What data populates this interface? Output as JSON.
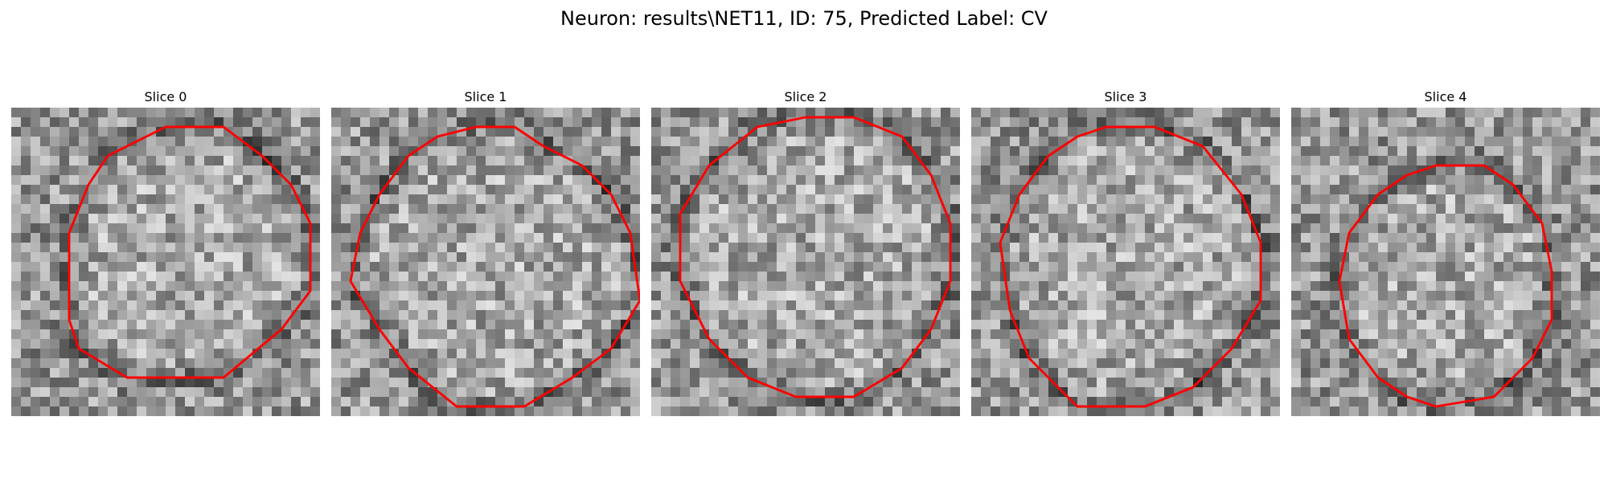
{
  "figure": {
    "title": "Neuron: results\\NET11, ID: 75, Predicted Label: CV"
  },
  "panels": [
    {
      "title": "Slice 0",
      "seed": 11,
      "contour": [
        [
          16,
          2
        ],
        [
          22,
          2
        ],
        [
          26,
          5
        ],
        [
          29,
          8
        ],
        [
          31,
          12
        ],
        [
          31,
          19
        ],
        [
          28,
          23
        ],
        [
          22,
          28
        ],
        [
          12,
          28
        ],
        [
          7,
          25
        ],
        [
          6,
          22
        ],
        [
          6,
          13
        ],
        [
          8,
          8
        ],
        [
          10,
          5
        ],
        [
          14,
          3
        ]
      ]
    },
    {
      "title": "Slice 1",
      "seed": 23,
      "contour": [
        [
          15,
          2
        ],
        [
          19,
          2
        ],
        [
          22,
          4
        ],
        [
          26,
          6
        ],
        [
          29,
          9
        ],
        [
          31,
          13
        ],
        [
          32,
          20
        ],
        [
          29,
          25
        ],
        [
          25,
          28
        ],
        [
          20,
          31
        ],
        [
          13,
          31
        ],
        [
          8,
          27
        ],
        [
          5,
          23
        ],
        [
          2,
          18
        ],
        [
          3,
          13
        ],
        [
          5,
          9
        ],
        [
          8,
          5
        ],
        [
          11,
          3
        ]
      ]
    },
    {
      "title": "Slice 2",
      "seed": 37,
      "contour": [
        [
          16,
          1
        ],
        [
          21,
          1
        ],
        [
          26,
          3
        ],
        [
          29,
          7
        ],
        [
          31,
          12
        ],
        [
          31,
          18
        ],
        [
          29,
          23
        ],
        [
          26,
          27
        ],
        [
          21,
          30
        ],
        [
          15,
          30
        ],
        [
          10,
          28
        ],
        [
          6,
          24
        ],
        [
          3,
          18
        ],
        [
          3,
          11
        ],
        [
          6,
          6
        ],
        [
          11,
          2
        ]
      ]
    },
    {
      "title": "Slice 3",
      "seed": 49,
      "contour": [
        [
          14,
          2
        ],
        [
          19,
          2
        ],
        [
          24,
          4
        ],
        [
          28,
          9
        ],
        [
          30,
          14
        ],
        [
          30,
          20
        ],
        [
          27,
          25
        ],
        [
          23,
          29
        ],
        [
          18,
          31
        ],
        [
          11,
          31
        ],
        [
          6,
          26
        ],
        [
          4,
          21
        ],
        [
          3,
          14
        ],
        [
          5,
          9
        ],
        [
          8,
          5
        ],
        [
          11,
          3
        ]
      ]
    },
    {
      "title": "Slice 4",
      "seed": 61,
      "contour": [
        [
          15,
          6
        ],
        [
          20,
          6
        ],
        [
          23,
          8
        ],
        [
          26,
          12
        ],
        [
          27,
          17
        ],
        [
          27,
          22
        ],
        [
          25,
          26
        ],
        [
          21,
          30
        ],
        [
          15,
          31
        ],
        [
          12,
          30
        ],
        [
          9,
          28
        ],
        [
          6,
          24
        ],
        [
          5,
          18
        ],
        [
          6,
          13
        ],
        [
          9,
          9
        ],
        [
          12,
          7
        ]
      ]
    }
  ],
  "colors": {
    "contour": "#ff0000"
  }
}
